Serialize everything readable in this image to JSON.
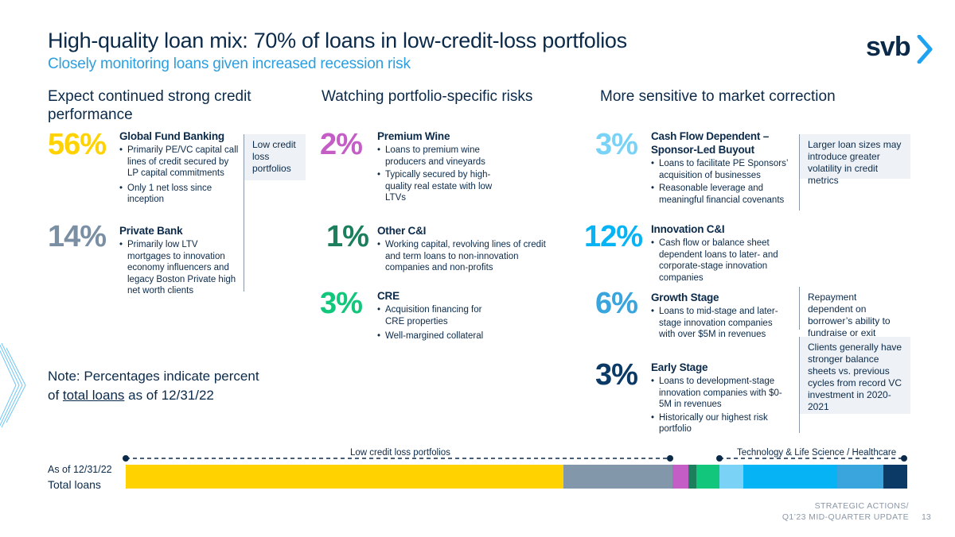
{
  "header": {
    "title": "High-quality loan mix: 70% of loans in low-credit-loss portfolios",
    "subtitle": "Closely monitoring loans given increased recession risk",
    "logo_text": "svb",
    "logo_icon": "chevron-right-icon"
  },
  "columns": [
    {
      "heading": "Expect continued strong credit performance"
    },
    {
      "heading": "Watching portfolio-specific risks"
    },
    {
      "heading": "More sensitive to market correction"
    }
  ],
  "items": {
    "gfb": {
      "pct": "56%",
      "title": "Global Fund Banking",
      "bullets": [
        "Primarily PE/VC capital call lines of credit secured by LP capital commitments",
        "Only 1 net loss since inception"
      ]
    },
    "pb": {
      "pct": "14%",
      "title": "Private Bank",
      "bullets": [
        "Primarily low LTV mortgages to innovation economy influencers and legacy Boston Private high net worth clients"
      ]
    },
    "wine": {
      "pct": "2%",
      "title": "Premium Wine",
      "bullets": [
        "Loans to premium wine producers and vineyards",
        "Typically secured by high-quality real estate with low LTVs"
      ]
    },
    "oci": {
      "pct": "1%",
      "title": "Other C&I",
      "bullets": [
        "Working capital, revolving lines of credit and term loans to non-innovation companies and non-profits"
      ]
    },
    "cre": {
      "pct": "3%",
      "title": "CRE",
      "bullets": [
        "Acquisition financing for CRE properties",
        "Well-margined collateral"
      ]
    },
    "cfd": {
      "pct": "3%",
      "title_line1": "Cash Flow Dependent –",
      "title_line2": "Sponsor-Led Buyout",
      "bullets": [
        "Loans to facilitate PE Sponsors’ acquisition of businesses",
        "Reasonable leverage and meaningful financial covenants"
      ]
    },
    "ici": {
      "pct": "12%",
      "title": "Innovation C&I",
      "bullets": [
        "Cash flow or balance sheet dependent loans to later- and corporate-stage innovation companies"
      ]
    },
    "gs": {
      "pct": "6%",
      "title": "Growth Stage",
      "bullets": [
        "Loans to mid-stage and later-stage innovation companies with over $5M in revenues"
      ]
    },
    "es": {
      "pct": "3%",
      "title": "Early Stage",
      "bullets": [
        "Loans to development-stage innovation companies with $0-5M in revenues",
        "Historically our highest risk portfolio"
      ]
    }
  },
  "notes": {
    "low_loss": "Low credit loss portfolios",
    "larger_loans": "Larger loan sizes may introduce greater volatility in credit metrics",
    "repayment": "Repayment dependent on borrower’s ability to fundraise or exit",
    "clients": "Clients generally have stronger balance sheets vs. previous cycles from record VC investment in 2020-2021"
  },
  "footnote": {
    "prefix": "Note: Percentages indicate percent of ",
    "underlined": "total loans",
    "suffix": " as of 12/31/22"
  },
  "bar_chart": {
    "as_of_label": "As of 12/31/22",
    "row_label": "Total loans",
    "legend_left": "Low credit loss portfolios",
    "legend_right": "Technology & Life Science / Healthcare",
    "segments": [
      {
        "key": "gfb",
        "value": 56,
        "color": "#ffd200"
      },
      {
        "key": "pb",
        "value": 14,
        "color": "#8397ab"
      },
      {
        "key": "wine",
        "value": 2,
        "color": "#c45dc6"
      },
      {
        "key": "oci",
        "value": 1,
        "color": "#1a7f5a"
      },
      {
        "key": "cre",
        "value": 3,
        "color": "#12c77b"
      },
      {
        "key": "cfd",
        "value": 3,
        "color": "#7ad3f7"
      },
      {
        "key": "ici",
        "value": 12,
        "color": "#06b3f5"
      },
      {
        "key": "gs",
        "value": 6,
        "color": "#3aa5dc"
      },
      {
        "key": "es",
        "value": 3,
        "color": "#0b3a66"
      }
    ]
  },
  "footer": {
    "line1": "STRATEGIC ACTIONS/",
    "line2": "Q1’23 MID-QUARTER UPDATE",
    "page": "13"
  },
  "colors": {
    "gfb_pct": "#ffd200",
    "pb_pct": "#7b8fa4",
    "wine_pct": "#c45dc6",
    "oci_pct": "#1a7f5a",
    "cre_pct": "#12c77b",
    "cfd_pct": "#7ad3f7",
    "ici_pct": "#06b3f5",
    "gs_pct": "#3aa5dc",
    "es_pct": "#0b3a66"
  }
}
